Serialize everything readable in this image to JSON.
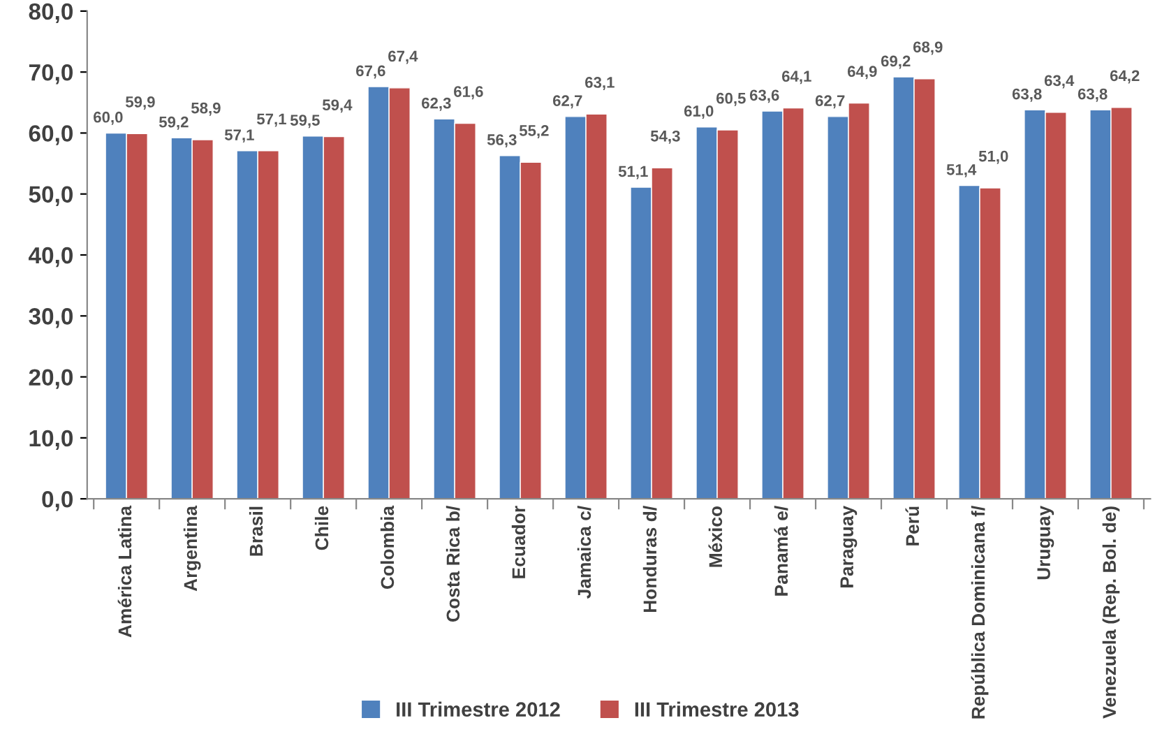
{
  "chart_data": {
    "type": "bar",
    "categories": [
      "América Latina",
      "Argentina",
      "Brasil",
      "Chile",
      "Colombia",
      "Costa Rica b/",
      "Ecuador",
      "Jamaica c/",
      "Honduras d/",
      "México",
      "Panamá e/",
      "Paraguay",
      "Perú",
      "República Dominicana f/",
      "Uruguay",
      "Venezuela (Rep. Bol. de)"
    ],
    "series": [
      {
        "name": "III Trimestre 2012",
        "color": "#4f81bd",
        "values": [
          60.0,
          59.2,
          57.1,
          59.5,
          67.6,
          62.3,
          56.3,
          62.7,
          51.1,
          61.0,
          63.6,
          62.7,
          69.2,
          51.4,
          63.8,
          63.8
        ],
        "value_labels": [
          "60,0",
          "59,2",
          "57,1",
          "59,5",
          "67,6",
          "62,3",
          "56,3",
          "62,7",
          "51,1",
          "61,0",
          "63,6",
          "62,7",
          "69,2",
          "51,4",
          "63,8",
          "63,8"
        ]
      },
      {
        "name": "III Trimestre 2013",
        "color": "#c0504d",
        "values": [
          59.9,
          58.9,
          57.1,
          59.4,
          67.4,
          61.6,
          55.2,
          63.1,
          54.3,
          60.5,
          64.1,
          64.9,
          68.9,
          51.0,
          63.4,
          64.2
        ],
        "value_labels": [
          "59,9",
          "58,9",
          "57,1",
          "59,4",
          "67,4",
          "61,6",
          "55,2",
          "63,1",
          "54,3",
          "60,5",
          "64,1",
          "64,9",
          "68,9",
          "51,0",
          "63,4",
          "64,2"
        ]
      }
    ],
    "ylim": [
      0,
      80
    ],
    "yticks": [
      {
        "value": 0,
        "label": "0,0"
      },
      {
        "value": 10,
        "label": "10,0"
      },
      {
        "value": 20,
        "label": "20,0"
      },
      {
        "value": 30,
        "label": "30,0"
      },
      {
        "value": 40,
        "label": "40,0"
      },
      {
        "value": 50,
        "label": "50,0"
      },
      {
        "value": 60,
        "label": "60,0"
      },
      {
        "value": 70,
        "label": "70,0"
      },
      {
        "value": 80,
        "label": "80,0"
      }
    ],
    "grid": false,
    "legend": "bottom"
  }
}
